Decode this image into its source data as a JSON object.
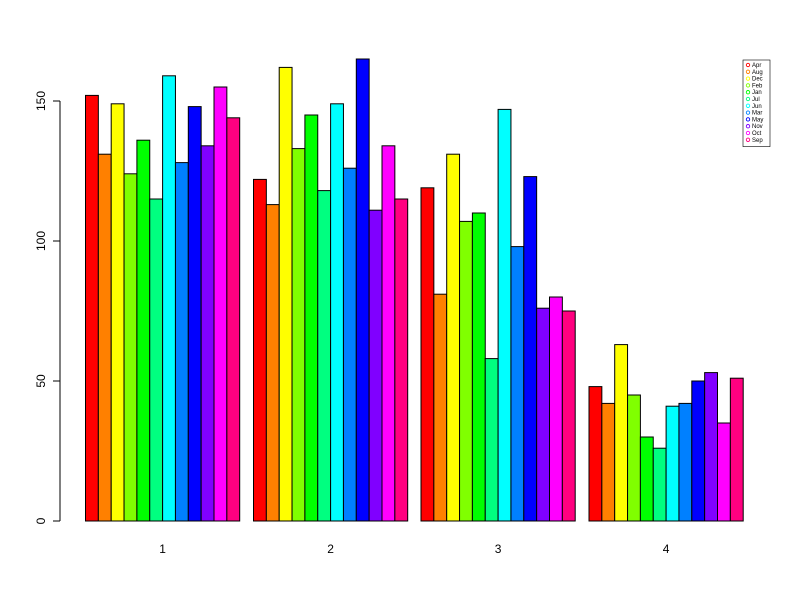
{
  "chart_data": {
    "type": "bar",
    "categories": [
      "1",
      "2",
      "3",
      "4"
    ],
    "series": [
      {
        "name": "Apr",
        "color": "#FF0000",
        "values": [
          152,
          122,
          119,
          48
        ]
      },
      {
        "name": "Aug",
        "color": "#FF8000",
        "values": [
          131,
          113,
          81,
          42
        ]
      },
      {
        "name": "Dec",
        "color": "#FFFF00",
        "values": [
          149,
          162,
          131,
          63
        ]
      },
      {
        "name": "Feb",
        "color": "#80FF00",
        "values": [
          124,
          133,
          107,
          45
        ]
      },
      {
        "name": "Jan",
        "color": "#00FF00",
        "values": [
          136,
          145,
          110,
          30
        ]
      },
      {
        "name": "Jul",
        "color": "#00FF80",
        "values": [
          115,
          118,
          58,
          26
        ]
      },
      {
        "name": "Jun",
        "color": "#00FFFF",
        "values": [
          159,
          149,
          147,
          41
        ]
      },
      {
        "name": "Mar",
        "color": "#0080FF",
        "values": [
          128,
          126,
          98,
          42
        ]
      },
      {
        "name": "May",
        "color": "#0000FF",
        "values": [
          148,
          165,
          123,
          50
        ]
      },
      {
        "name": "Nov",
        "color": "#8000FF",
        "values": [
          134,
          111,
          76,
          53
        ]
      },
      {
        "name": "Oct",
        "color": "#FF00FF",
        "values": [
          155,
          134,
          80,
          35
        ]
      },
      {
        "name": "Sep",
        "color": "#FF0080",
        "values": [
          144,
          115,
          75,
          51
        ]
      }
    ],
    "y_ticks": [
      0,
      50,
      100,
      150
    ],
    "ylim": [
      0,
      165
    ],
    "title": "",
    "xlabel": "",
    "ylabel": "",
    "grid": false,
    "legend": "top-right"
  }
}
